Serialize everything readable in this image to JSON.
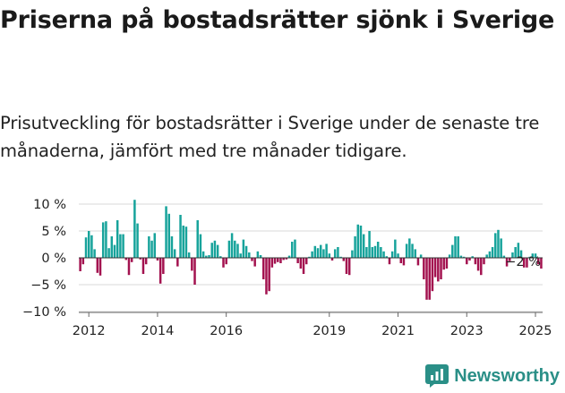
{
  "title": "Priserna på bostadsrätter sjönk i Sverige",
  "subtitle": "Prisutveckling för bostadsrätter i Sverige under de senaste tre månaderna, jämfört med tre månader tidigare.",
  "brand": {
    "name": "Newsworthy",
    "icon": "newsworthy-logo-icon"
  },
  "colors": {
    "positive": "#17a39b",
    "negative": "#a3124f",
    "grid": "#d9d9d9",
    "axis": "#666666",
    "text": "#222222"
  },
  "chart_data": {
    "type": "bar",
    "start": "2011-10",
    "last_label": "−2 %",
    "ylim": [
      -10,
      10
    ],
    "yticks": [
      10,
      5,
      0,
      -5,
      -10
    ],
    "ytick_labels": [
      "10 %",
      "5 %",
      "0 %",
      "−5 %",
      "−10 %"
    ],
    "xticks": [
      "2012",
      "2014",
      "2016",
      "2019",
      "2021",
      "2023",
      "2025"
    ],
    "grid": true,
    "values": [
      -2.5,
      -1.2,
      3.8,
      5.0,
      4.2,
      1.6,
      -2.8,
      -3.3,
      6.6,
      6.8,
      1.8,
      4.0,
      2.4,
      7.0,
      4.4,
      4.4,
      -0.4,
      -3.2,
      -0.8,
      10.8,
      6.4,
      -0.3,
      -3.0,
      -1.2,
      4.0,
      3.2,
      4.6,
      -0.5,
      -4.8,
      -3.0,
      9.6,
      8.2,
      4.0,
      1.6,
      -1.6,
      8.0,
      6.0,
      5.8,
      1.0,
      -2.4,
      -5.0,
      7.0,
      4.4,
      1.2,
      0.4,
      0.5,
      2.8,
      3.2,
      2.4,
      0.3,
      -1.8,
      -1.2,
      3.2,
      4.6,
      3.2,
      2.6,
      0.8,
      3.4,
      2.2,
      1.0,
      -0.6,
      -1.6,
      1.2,
      0.5,
      -4.0,
      -6.8,
      -6.2,
      -1.8,
      -1.1,
      -0.8,
      -1.0,
      -0.4,
      -0.3,
      0.4,
      3.0,
      3.4,
      -1.0,
      -2.0,
      -3.0,
      -1.2,
      0.2,
      1.2,
      2.2,
      1.8,
      2.4,
      1.6,
      2.6,
      0.8,
      -0.5,
      1.6,
      2.0,
      0.2,
      -0.6,
      -3.0,
      -3.2,
      1.4,
      4.0,
      6.2,
      6.0,
      4.4,
      2.0,
      5.0,
      2.0,
      2.2,
      3.0,
      2.0,
      1.2,
      0.3,
      -1.2,
      1.2,
      3.4,
      0.8,
      -1.0,
      -1.4,
      2.6,
      3.6,
      2.6,
      1.6,
      -1.4,
      0.6,
      -4.0,
      -7.8,
      -7.8,
      -6.2,
      -3.6,
      -4.4,
      -4.0,
      -2.2,
      -2.0,
      0.6,
      2.4,
      4.0,
      4.0,
      0.4,
      0.2,
      -1.2,
      -0.5,
      0.3,
      -1.2,
      -2.4,
      -3.2,
      -1.2,
      0.6,
      1.2,
      2.0,
      4.6,
      5.2,
      3.6,
      0.4,
      -1.6,
      -0.6,
      1.0,
      2.0,
      2.8,
      1.4,
      -1.8,
      -1.8,
      0.2,
      0.8,
      0.8,
      -1.2,
      -2.0
    ]
  }
}
